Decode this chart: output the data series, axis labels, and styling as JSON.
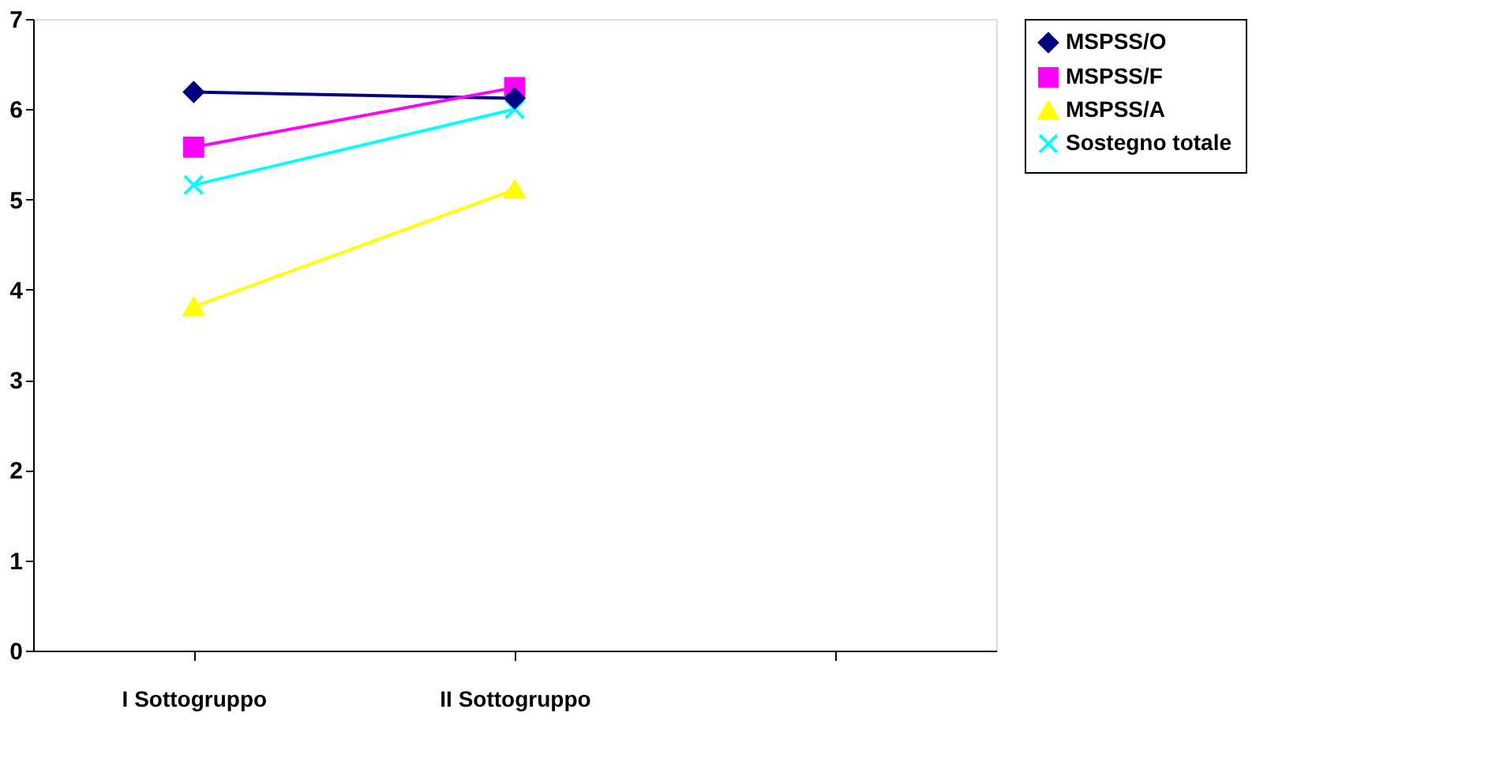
{
  "chart_data": {
    "type": "line",
    "categories": [
      "I Sottogruppo",
      "II Sottogruppo",
      null
    ],
    "series": [
      {
        "name": "MSPSS/O",
        "color": "#000080",
        "marker": "diamond",
        "values": [
          6.19,
          6.12,
          null
        ]
      },
      {
        "name": "MSPSS/F",
        "color": "#ff00ff",
        "marker": "square",
        "values": [
          5.58,
          6.24,
          null
        ]
      },
      {
        "name": "MSPSS/A",
        "color": "#ffff00",
        "marker": "triangle",
        "values": [
          3.81,
          5.11,
          null
        ]
      },
      {
        "name": "Sostegno totale",
        "color": "#00ffff",
        "marker": "cross",
        "values": [
          5.16,
          6.0,
          null
        ]
      }
    ],
    "ylim": [
      0,
      7
    ],
    "yticks": [
      0,
      1,
      2,
      3,
      4,
      5,
      6,
      7
    ],
    "grid": false,
    "legend": "right",
    "line_style": "solid"
  }
}
